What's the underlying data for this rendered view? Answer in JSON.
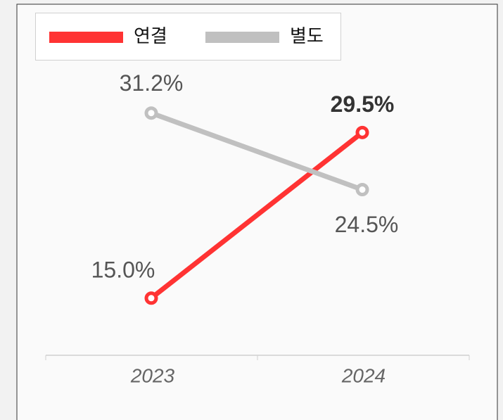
{
  "chart_data": {
    "type": "line",
    "categories": [
      "2023",
      "2024"
    ],
    "series": [
      {
        "name": "연결",
        "color": "#ff3333",
        "values": [
          15.0,
          29.5
        ],
        "value_labels": [
          "15.0%",
          "29.5%"
        ]
      },
      {
        "name": "별도",
        "color": "#c0c0c0",
        "values": [
          31.2,
          24.5
        ],
        "value_labels": [
          "31.2%",
          "24.5%"
        ]
      }
    ],
    "ylim": [
      10,
      35
    ]
  }
}
